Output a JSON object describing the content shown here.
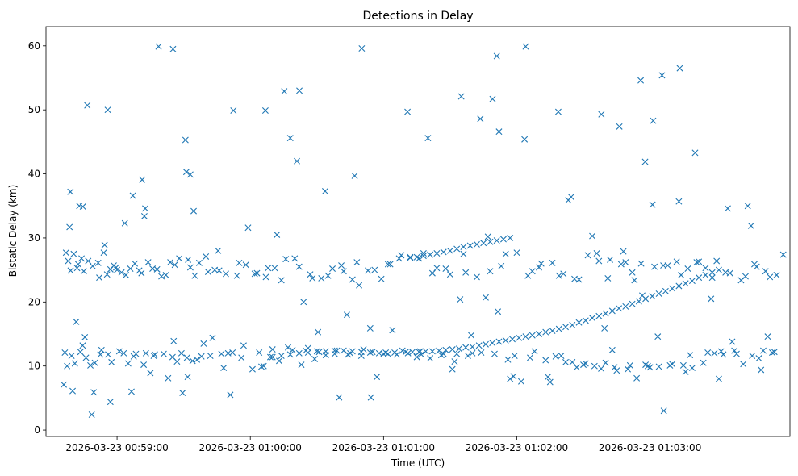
{
  "chart_data": {
    "type": "scatter",
    "title": "Detections in Delay",
    "xlabel": "Time (UTC)",
    "ylabel": "Bistatic Delay (km)",
    "marker": "x",
    "color": "#1f77b4",
    "x_unit": "seconds after 2026-03-23 00:58:30",
    "xlim": [
      -2.0,
      333.0
    ],
    "ylim": [
      -1.0,
      63.0
    ],
    "x_ticks": [
      {
        "value": 30,
        "label": "2026-03-23 00:59:00"
      },
      {
        "value": 90,
        "label": "2026-03-23 01:00:00"
      },
      {
        "value": 150,
        "label": "2026-03-23 01:01:00"
      },
      {
        "value": 210,
        "label": "2026-03-23 01:02:00"
      },
      {
        "value": 270,
        "label": "2026-03-23 01:03:00"
      }
    ],
    "y_ticks": [
      {
        "value": 0,
        "label": "0"
      },
      {
        "value": 10,
        "label": "10"
      },
      {
        "value": 20,
        "label": "20"
      },
      {
        "value": 30,
        "label": "30"
      },
      {
        "value": 40,
        "label": "40"
      },
      {
        "value": 50,
        "label": "50"
      },
      {
        "value": 60,
        "label": "60"
      }
    ],
    "series": [
      {
        "name": "detections",
        "x": [
          8.6,
          9.1,
          11.6,
          14.6,
          16.6,
          18.6,
          24.4,
          29.6,
          25.8,
          37.1,
          41.3,
          42.7,
          42.3,
          48.7,
          60.8,
          61.2,
          61.8,
          63.0,
          55.2,
          96.8,
          112.1,
          114.0,
          82.4,
          108.0,
          105.3,
          123.7,
          140.2,
          144.0,
          144.3,
          160.8,
          185.0,
          202.0,
          193.6,
          199.1,
          201.0,
          214.0,
          228.7,
          233.2,
          234.5,
          248.1,
          256.2,
          265.8,
          267.8,
          271.4,
          276.2,
          275.4,
          271.1,
          283.4,
          290.3,
          315.5,
          7.0,
          10.5,
          12.0,
          14.0,
          17.0,
          22.0,
          24.0,
          27.0,
          30.0,
          34.0,
          38.0,
          41.0,
          46.0,
          50.0,
          54.0,
          56.0,
          62.0,
          65.0,
          70.0,
          76.0,
          85.0,
          92.0,
          98.0,
          104.0,
          110.0,
          118.0,
          125.0,
          131.0,
          138.0,
          143.0,
          149.0,
          153.0,
          158.0,
          166.0,
          172.0,
          178.0,
          187.0,
          196.0,
          205.0,
          217.0,
          221.0,
          229.0,
          238.0,
          246.0,
          252.0,
          259.0,
          263.0,
          276.0,
          284.0,
          292.0,
          298.0,
          304.0,
          311.0,
          318.0,
          324.0,
          6.5,
          9.5,
          13.5,
          16.0,
          20.0,
          23.0,
          26.0,
          31.0,
          35.0,
          38.5,
          43.0,
          46.5,
          51.0,
          55.0,
          59.0,
          64.0,
          68.0,
          72.0,
          77.0,
          80.0,
          86.0,
          94.0,
          100.0,
          107.0,
          115.0,
          121.0,
          128.0,
          134.0,
          141.0,
          151.0,
          158.5,
          166.5,
          176.0,
          183.0,
          190.0,
          209.0,
          216.0,
          223.0,
          232.0,
          240.0,
          248.0,
          254.0,
          261.0,
          268.0,
          279.0,
          288.0,
          296.0,
          302.0,
          309.0,
          316.0,
          321.0,
          326.0,
          8.0,
          12.5,
          15.0,
          19.0,
          21.5,
          25.5,
          28.5,
          32.0,
          36.0,
          40.0,
          44.0,
          48.0,
          52.0,
          58.0,
          63.0,
          67.0,
          71.0,
          74.0,
          79.0,
          84.0,
          88.0,
          93.0,
          97.0,
          101.0,
          106.0,
          112.0,
          117.0,
          122.0,
          127.0,
          132.0,
          136.0,
          139.0,
          146.0,
          152.0,
          157.0,
          162.0,
          168.0,
          174.0,
          180.0,
          186.0,
          192.0,
          198.0,
          203.0,
          210.0,
          215.0,
          220.0,
          226.0,
          231.0,
          236.0,
          242.0,
          247.0,
          251.0,
          257.0,
          262.0,
          266.0,
          272.0,
          278.0,
          282.0,
          287.0,
          291.0,
          295.0,
          300.0,
          306.0,
          313.0,
          317.0,
          322.0,
          327.0,
          7.5,
          11.0,
          14.5,
          18.0,
          22.5,
          27.5,
          33.0,
          37.5,
          42.0,
          47.0,
          53.0,
          57.0,
          61.5,
          66.0,
          69.0,
          73.0,
          78.0,
          82.0,
          87.0,
          91.0,
          95.0,
          99.0,
          103.0,
          109.0,
          113.0,
          119.0,
          124.0,
          129.0,
          135.0,
          140.0,
          145.0,
          150.0,
          155.0,
          161.0,
          167.0,
          171.0,
          177.0,
          182.0,
          188.0,
          194.0,
          200.0,
          206.0,
          212.0,
          218.0,
          224.0,
          230.0,
          235.0,
          241.0,
          245.0,
          250.0,
          255.0,
          260.0,
          264.0,
          270.0,
          274.0,
          280.0,
          285.0,
          289.0,
          294.0,
          299.0,
          303.0,
          308.0,
          312.0,
          319.0,
          325.0,
          6.0,
          10.0,
          19.5,
          27.0,
          36.5,
          45.0,
          59.5,
          81.0,
          96.0,
          116.0,
          130.0,
          147.0,
          165.0,
          181.0,
          207.0,
          225.0,
          237.0,
          253.0,
          269.0,
          286.0,
          301.0,
          320.0,
          160.0,
          163.0,
          166.0,
          169.0,
          172.0,
          175.0,
          178.0,
          181.0,
          184.0,
          187.0,
          190.0,
          193.0,
          196.0,
          199.0,
          202.0,
          205.0,
          208.0,
          211.0,
          214.0,
          217.0,
          220.0,
          223.0,
          226.0,
          229.0,
          232.0,
          235.0,
          238.0,
          241.0,
          244.0,
          247.0,
          250.0,
          253.0,
          256.0,
          259.0,
          262.0,
          265.0,
          268.0,
          271.0,
          274.0,
          277.0,
          280.0,
          283.0,
          286.0,
          289.0,
          292.0,
          295.0,
          298.0,
          301.0,
          162.0,
          165.0,
          168.0,
          171.0,
          174.0,
          177.0,
          180.0,
          183.0,
          186.0,
          189.0,
          192.0,
          195.0,
          198.0,
          201.0,
          204.0,
          207.0,
          100.0,
          104.0,
          108.0,
          112.0,
          116.0,
          120.0,
          124.0,
          128.0,
          132.0,
          136.0,
          140.0,
          144.0,
          148.0,
          152.0,
          156.0,
          9.0,
          13.0,
          33.5,
          64.5,
          75.5,
          111.0,
          137.0,
          170.0,
          184.5,
          197.0,
          201.5,
          213.5,
          244.0,
          258.0,
          266.5,
          283.0,
          297.5,
          305.0,
          314.0,
          330.0,
          15.5,
          55.5,
          89.0,
          102.0,
          120.5,
          133.5,
          154.0,
          189.5,
          208.5,
          227.5,
          249.5,
          273.5,
          307.0,
          323.0
        ],
        "y": [
          31.7,
          24.9,
          16.9,
          34.9,
          50.7,
          2.4,
          28.9,
          25.4,
          50.0,
          36.6,
          39.1,
          34.6,
          33.4,
          59.9,
          45.3,
          40.3,
          8.3,
          39.9,
          59.5,
          49.9,
          53.0,
          20.0,
          49.9,
          45.6,
          52.9,
          37.3,
          59.6,
          15.9,
          5.1,
          49.7,
          52.1,
          46.6,
          48.6,
          51.7,
          58.4,
          59.9,
          49.7,
          35.9,
          36.4,
          49.3,
          47.4,
          54.6,
          41.9,
          48.3,
          3.0,
          55.4,
          35.2,
          56.5,
          43.3,
          31.9,
          27.7,
          27.5,
          25.3,
          26.8,
          26.4,
          23.8,
          27.7,
          25.1,
          25.0,
          24.2,
          26.0,
          24.5,
          25.2,
          24.0,
          26.2,
          25.8,
          26.6,
          24.1,
          27.1,
          24.9,
          26.1,
          24.4,
          25.3,
          23.4,
          26.8,
          23.7,
          24.1,
          25.7,
          26.2,
          24.9,
          23.6,
          25.9,
          27.3,
          26.8,
          24.5,
          25.2,
          24.6,
          20.7,
          27.5,
          24.8,
          26.0,
          24.1,
          23.5,
          27.6,
          26.6,
          26.2,
          23.4,
          25.7,
          24.2,
          26.3,
          23.8,
          24.6,
          23.4,
          25.5,
          23.9,
          12.1,
          11.6,
          12.2,
          11.3,
          10.5,
          12.5,
          11.8,
          12.3,
          10.4,
          11.9,
          12.0,
          11.6,
          11.9,
          11.4,
          12.0,
          10.8,
          11.5,
          11.6,
          11.9,
          12.0,
          11.3,
          12.1,
          12.6,
          12.9,
          12.4,
          12.2,
          11.9,
          11.8,
          12.6,
          12.1,
          12.4,
          12.3,
          11.7,
          11.9,
          12.0,
          11.6,
          11.3,
          10.9,
          10.6,
          10.2,
          9.6,
          9.8,
          10.1,
          10.2,
          10.1,
          11.7,
          12.1,
          12.3,
          11.9,
          11.6,
          12.4,
          12.2,
          26.4,
          25.9,
          24.8,
          25.6,
          26.1,
          24.3,
          25.7,
          24.6,
          25.2,
          24.9,
          26.2,
          25.1,
          24.2,
          26.8,
          25.4,
          26.1,
          24.7,
          25.0,
          24.4,
          24.1,
          25.8,
          24.5,
          23.9,
          25.3,
          26.7,
          25.5,
          24.3,
          23.7,
          25.2,
          24.8,
          23.5,
          22.6,
          25.0,
          25.9,
          26.8,
          27.0,
          27.6,
          25.3,
          24.3,
          27.5,
          23.9,
          24.8,
          25.6,
          27.7,
          24.1,
          25.4,
          26.1,
          24.4,
          23.6,
          27.3,
          26.4,
          23.7,
          25.9,
          24.6,
          26.0,
          25.5,
          25.7,
          26.3,
          25.2,
          26.2,
          25.3,
          26.4,
          24.5,
          24.0,
          25.9,
          24.8,
          24.2,
          10.0,
          10.4,
          13.2,
          10.1,
          11.8,
          10.6,
          12.0,
          11.5,
          10.2,
          11.8,
          8.1,
          10.7,
          11.3,
          11.0,
          13.5,
          14.4,
          9.7,
          12.1,
          13.2,
          9.5,
          9.9,
          11.4,
          10.8,
          12.5,
          10.2,
          11.1,
          11.7,
          12.4,
          12.0,
          11.6,
          12.2,
          11.9,
          12.1,
          12.0,
          11.8,
          11.2,
          11.9,
          10.7,
          11.6,
          12.1,
          11.9,
          11.0,
          7.6,
          12.3,
          8.3,
          11.6,
          10.6,
          10.4,
          10.0,
          10.5,
          9.3,
          9.5,
          8.1,
          9.8,
          9.9,
          10.3,
          10.1,
          9.7,
          10.5,
          12.0,
          11.8,
          12.4,
          10.3,
          11.2,
          12.1,
          7.1,
          6.1,
          5.9,
          4.4,
          6.0,
          8.9,
          5.8,
          5.5,
          10.0,
          12.8,
          5.1,
          8.3,
          11.4,
          9.5,
          8.0,
          7.5,
          9.8,
          12.5,
          10.0,
          9.1,
          8.0,
          9.4,
          12.2,
          12.2,
          12.2,
          12.3,
          12.3,
          12.4,
          12.5,
          12.6,
          12.7,
          12.9,
          13.0,
          13.2,
          13.4,
          13.6,
          13.8,
          14.0,
          14.2,
          14.4,
          14.6,
          14.8,
          15.0,
          15.3,
          15.5,
          15.8,
          16.1,
          16.4,
          16.8,
          17.1,
          17.5,
          17.8,
          18.2,
          18.6,
          19.0,
          19.3,
          19.7,
          20.1,
          20.5,
          20.9,
          21.3,
          21.7,
          22.1,
          22.5,
          22.9,
          23.3,
          23.8,
          24.2,
          24.6,
          25.0,
          26.9,
          27.0,
          27.2,
          27.4,
          27.6,
          27.8,
          28.0,
          28.3,
          28.6,
          28.8,
          29.0,
          29.2,
          29.4,
          29.6,
          29.8,
          30.0,
          11.4,
          11.6,
          11.8,
          12.0,
          12.1,
          12.3,
          12.3,
          12.4,
          12.4,
          12.3,
          12.2,
          12.1,
          12.0,
          11.9,
          11.8,
          37.2,
          35.0,
          32.3,
          34.2,
          28.0,
          42.0,
          39.7,
          45.6,
          20.4,
          30.2,
          18.5,
          45.4,
          30.3,
          27.9,
          21.0,
          35.7,
          20.5,
          34.6,
          35.0,
          27.4,
          14.5,
          13.9,
          31.6,
          30.5,
          15.3,
          18.0,
          15.6,
          14.8,
          8.4,
          11.5,
          15.9,
          14.6,
          13.8,
          14.6
        ]
      }
    ]
  }
}
